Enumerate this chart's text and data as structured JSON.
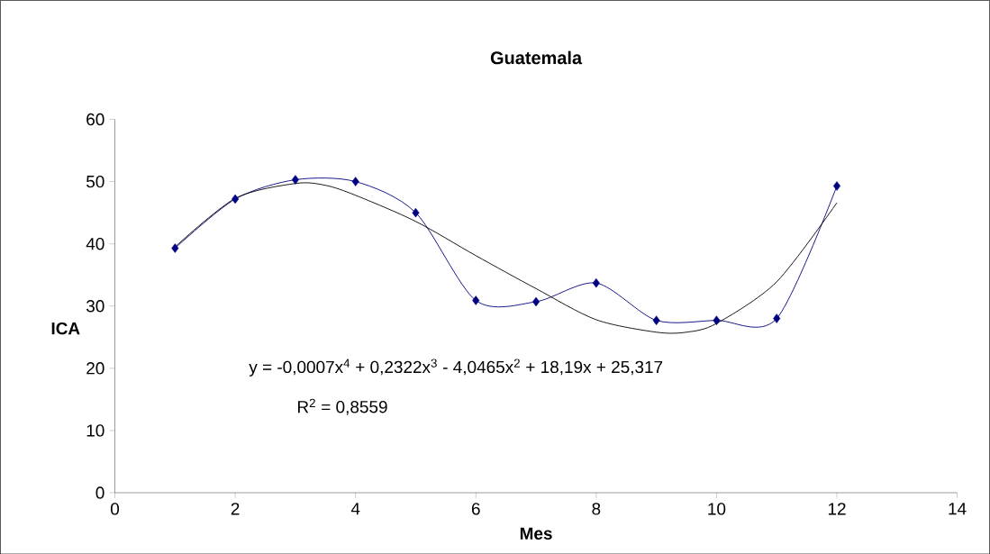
{
  "chart_data": {
    "type": "line",
    "title": "Guatemala",
    "xlabel": "Mes",
    "ylabel": "ICA",
    "series": [
      {
        "color": "#000080",
        "marker": "diamond",
        "x": [
          1,
          2,
          3,
          4,
          5,
          6,
          7,
          8,
          9,
          10,
          11,
          12
        ],
        "values": [
          39.3,
          47.2,
          50.3,
          50.0,
          45.0,
          30.9,
          30.7,
          33.7,
          27.7,
          27.7,
          28.0,
          49.3
        ]
      },
      {
        "type": "line",
        "color": "#000000",
        "marker": "none",
        "x": [
          1,
          2,
          3,
          3.5,
          4,
          5,
          6,
          7,
          8,
          9,
          9.5,
          10,
          11,
          12
        ],
        "values": [
          39.5,
          47.3,
          49.7,
          49.4,
          47.8,
          43.6,
          38.1,
          32.8,
          27.8,
          25.8,
          25.8,
          27.2,
          33.9,
          46.6
        ]
      }
    ],
    "xlim": [
      0,
      14
    ],
    "xticks": [
      0,
      2,
      4,
      6,
      8,
      10,
      12,
      14
    ],
    "ylim": [
      0,
      60
    ],
    "yticks": [
      0,
      10,
      20,
      30,
      40,
      50,
      60
    ],
    "grid": false,
    "annotations": [
      "y = -0,0007x$^{4}$ + 0,2322x$^{3}$ - 4,0465x$^{2}$ + 18,19x + 25,317",
      "R$^{2}$ = 0,8559"
    ]
  }
}
